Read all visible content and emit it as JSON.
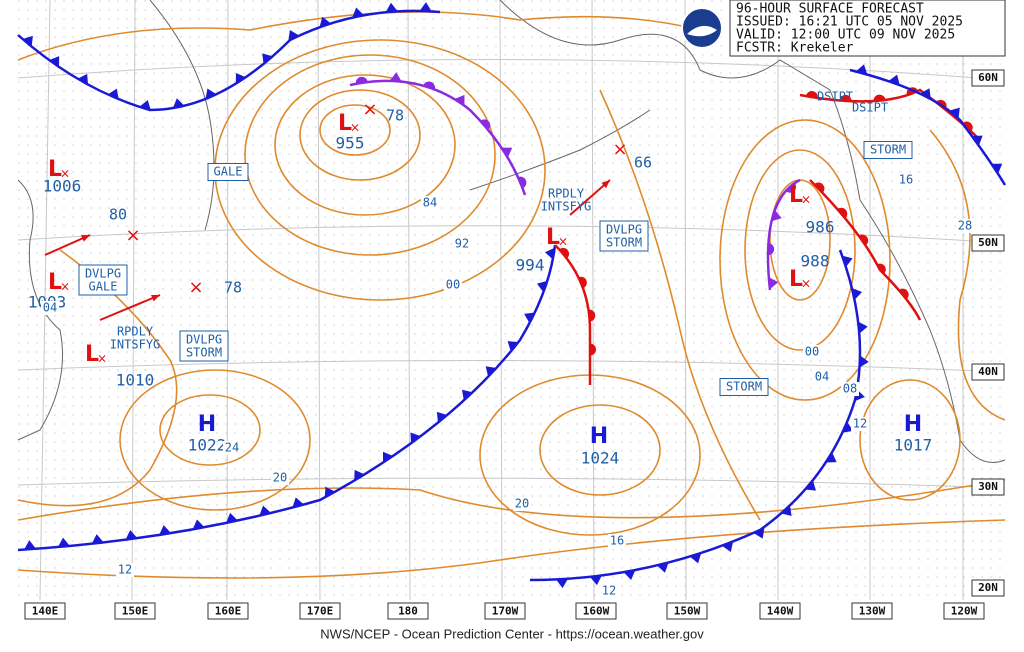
{
  "header": {
    "lines": [
      "96-HOUR SURFACE FORECAST",
      "ISSUED: 16:21 UTC 05 NOV 2025",
      "VALID:  12:00 UTC 09 NOV 2025",
      "FCSTR:  Krekeler"
    ]
  },
  "lows": [
    {
      "symbol": "L",
      "pressure": "1006"
    },
    {
      "symbol": "L",
      "pressure": "1003"
    },
    {
      "symbol": "L",
      "pressure": "1010"
    },
    {
      "symbol": "L",
      "pressure": "955"
    },
    {
      "symbol": "L",
      "pressure": "994"
    },
    {
      "symbol": "L",
      "pressure": "986"
    },
    {
      "symbol": "L",
      "pressure": "988"
    }
  ],
  "future_lows": [
    "80",
    "78",
    "78",
    "66"
  ],
  "highs": [
    {
      "symbol": "H",
      "pressure": "1022"
    },
    {
      "symbol": "H",
      "pressure": "1024"
    },
    {
      "symbol": "H",
      "pressure": "1017"
    }
  ],
  "warnings": [
    "GALE",
    "DVLPG GALE",
    "RPDLY INTSFYG",
    "DVLPG STORM",
    "RPDLY INTSFYG",
    "DVLPG STORM",
    "STORM",
    "STORM",
    "DSIPT",
    "DSIPT"
  ],
  "isobar_labels": [
    "84",
    "92",
    "00",
    "04",
    "24",
    "20",
    "20",
    "16",
    "12",
    "12",
    "00",
    "04",
    "08",
    "12",
    "16",
    "28"
  ],
  "lon_labels": [
    "140E",
    "150E",
    "160E",
    "170E",
    "180",
    "170W",
    "160W",
    "150W",
    "140W",
    "130W",
    "120W"
  ],
  "lat_labels": [
    "60N",
    "50N",
    "40N",
    "30N",
    "20N"
  ],
  "footer": "NWS/NCEP - Ocean Prediction Center - https://ocean.weather.gov"
}
